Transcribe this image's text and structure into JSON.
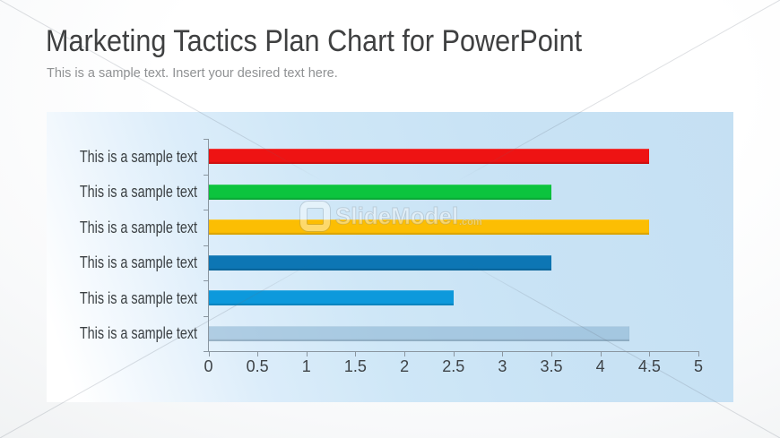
{
  "slide": {
    "title": "Marketing Tactics Plan Chart for PowerPoint",
    "subtitle": "This is a sample text. Insert your desired text here."
  },
  "watermark": {
    "brand": "SlideModel",
    "domain_suffix": ".com",
    "logo_icon": "slidemodel-logo"
  },
  "colors": {
    "title_text": "#3f4041",
    "subtitle_text": "#8f9193",
    "category_label_text": "#3b4043",
    "tick_label_text": "#3e4347",
    "axis_line": "#8a96a0",
    "panel_gradient_from": "#ffffff",
    "panel_gradient_to": "#c5e0f3",
    "background_from": "#ffffff",
    "background_to": "#e9ebec"
  },
  "chart_data": {
    "type": "bar",
    "orientation": "horizontal",
    "title": "",
    "xlabel": "",
    "ylabel": "",
    "categories": [
      "This is a sample text",
      "This is a sample text",
      "This is a sample text",
      "This is a sample text",
      "This is a sample text",
      "This is a sample text"
    ],
    "values": [
      4.5,
      3.5,
      4.5,
      3.5,
      2.5,
      4.3
    ],
    "bar_colors": [
      "#ee1313",
      "#0cc43e",
      "#fcbe03",
      "#0d76b4",
      "#0d99dc",
      "rgba(134,177,208,0.55)"
    ],
    "xlim": [
      0,
      5
    ],
    "xticks": [
      0,
      0.5,
      1,
      1.5,
      2,
      2.5,
      3,
      3.5,
      4,
      4.5,
      5
    ],
    "xtick_labels": [
      "0",
      "0.5",
      "1",
      "1.5",
      "2",
      "2.5",
      "3",
      "3.5",
      "4",
      "4.5",
      "5"
    ],
    "grid": false,
    "legend": false
  }
}
